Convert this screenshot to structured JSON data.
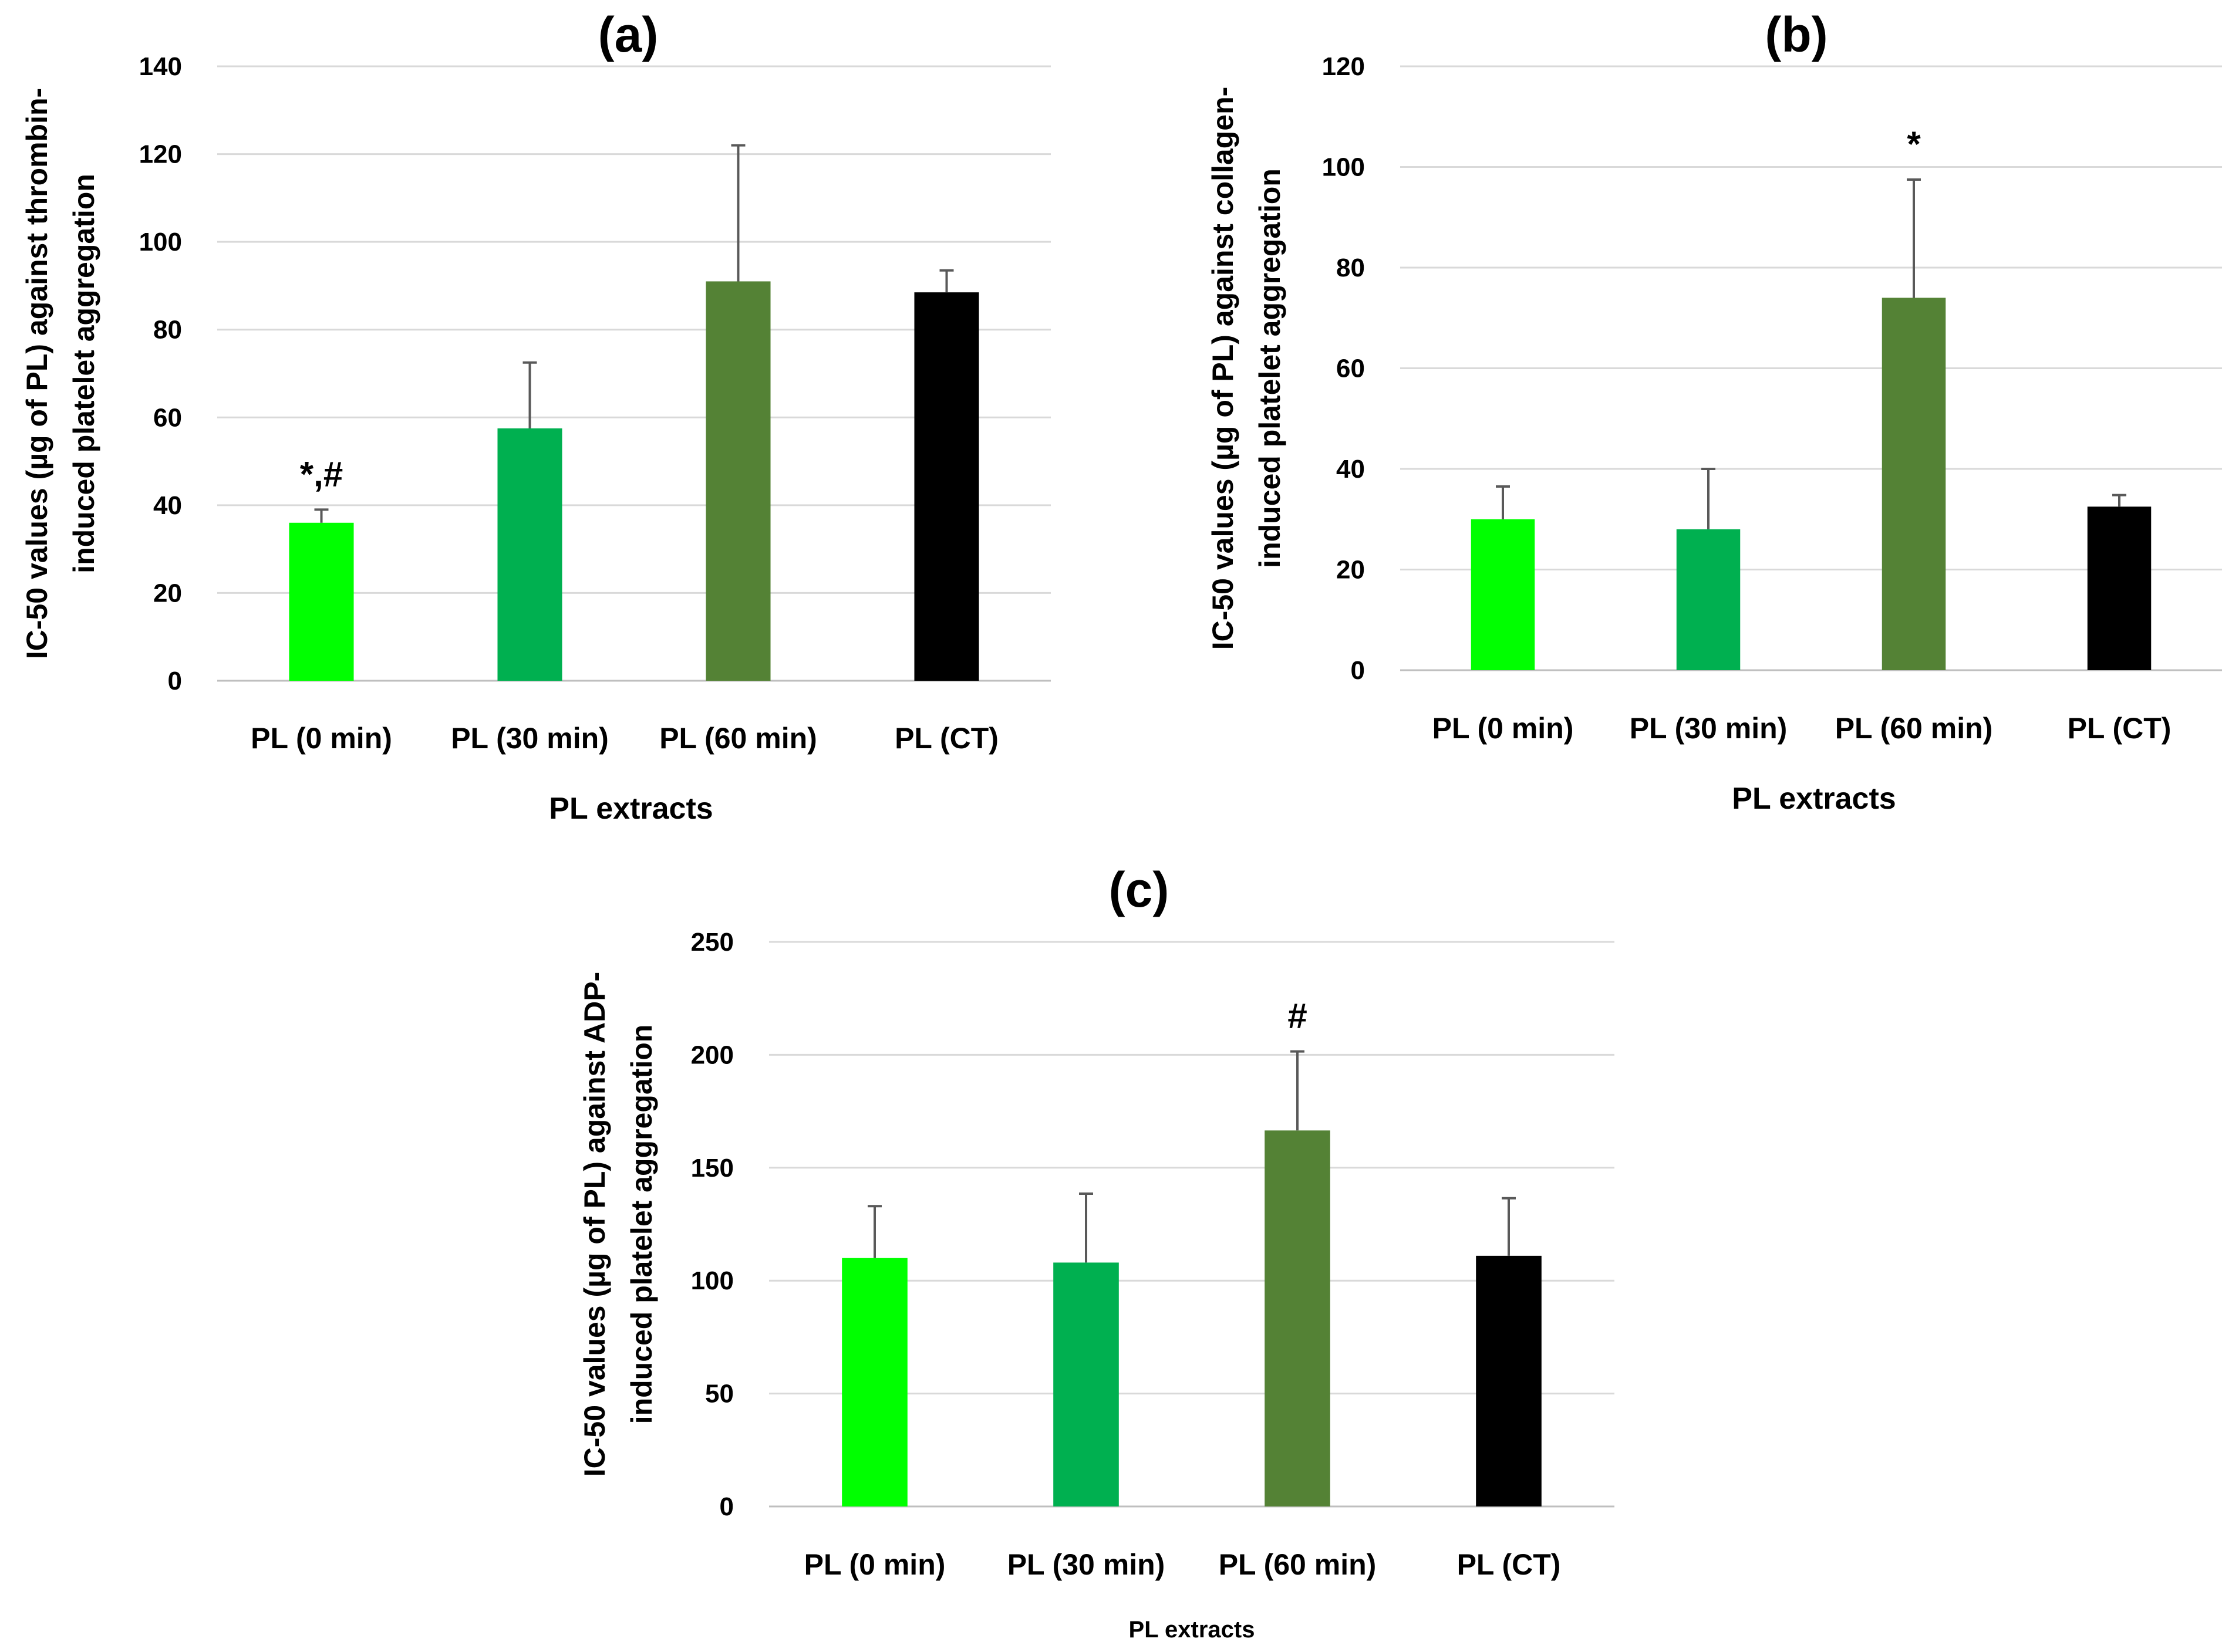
{
  "colors": {
    "PL (0 min)": "#00ff00",
    "PL (30 min)": "#00b050",
    "PL (60 min)": "#548235",
    "PL (CT)": "#000000"
  },
  "chart_data": [
    {
      "type": "bar",
      "title": "(a)",
      "xlabel": "PL extracts",
      "ylabel": [
        "IC-50 values (µg of PL) against thrombin-",
        "induced platelet aggregation"
      ],
      "categories": [
        "PL (0 min)",
        "PL (30 min)",
        "PL (60 min)",
        "PL (CT)"
      ],
      "values": [
        36,
        57.5,
        91,
        88.5
      ],
      "errors": [
        3,
        15,
        31,
        5
      ],
      "annotations": [
        "*,#",
        "",
        "",
        ""
      ],
      "ylim": [
        0,
        140
      ],
      "yticks": [
        0,
        20,
        40,
        60,
        80,
        100,
        120,
        140
      ],
      "grid": true
    },
    {
      "type": "bar",
      "title": "(b)",
      "xlabel": "PL extracts",
      "ylabel": [
        "IC-50 values (µg of PL) against collagen-",
        "induced platelet aggregation"
      ],
      "categories": [
        "PL (0 min)",
        "PL (30 min)",
        "PL (60 min)",
        "PL (CT)"
      ],
      "values": [
        30,
        28,
        74,
        32.5
      ],
      "errors": [
        6.5,
        12,
        23.5,
        2.3
      ],
      "annotations": [
        "",
        "",
        "*",
        ""
      ],
      "ylim": [
        0,
        120
      ],
      "yticks": [
        0,
        20,
        40,
        60,
        80,
        100,
        120
      ],
      "grid": true
    },
    {
      "type": "bar",
      "title": "(c)",
      "xlabel": "PL extracts",
      "ylabel": [
        "IC-50 values (µg of PL) against ADP-",
        "induced platelet aggregation"
      ],
      "categories": [
        "PL (0 min)",
        "PL (30 min)",
        "PL (60 min)",
        "PL (CT)"
      ],
      "values": [
        110,
        108,
        166.5,
        111
      ],
      "errors": [
        23,
        30.5,
        35,
        25.5
      ],
      "annotations": [
        "",
        "",
        "#",
        ""
      ],
      "ylim": [
        0,
        250
      ],
      "yticks": [
        0,
        50,
        100,
        150,
        200,
        250
      ],
      "grid": true
    }
  ]
}
